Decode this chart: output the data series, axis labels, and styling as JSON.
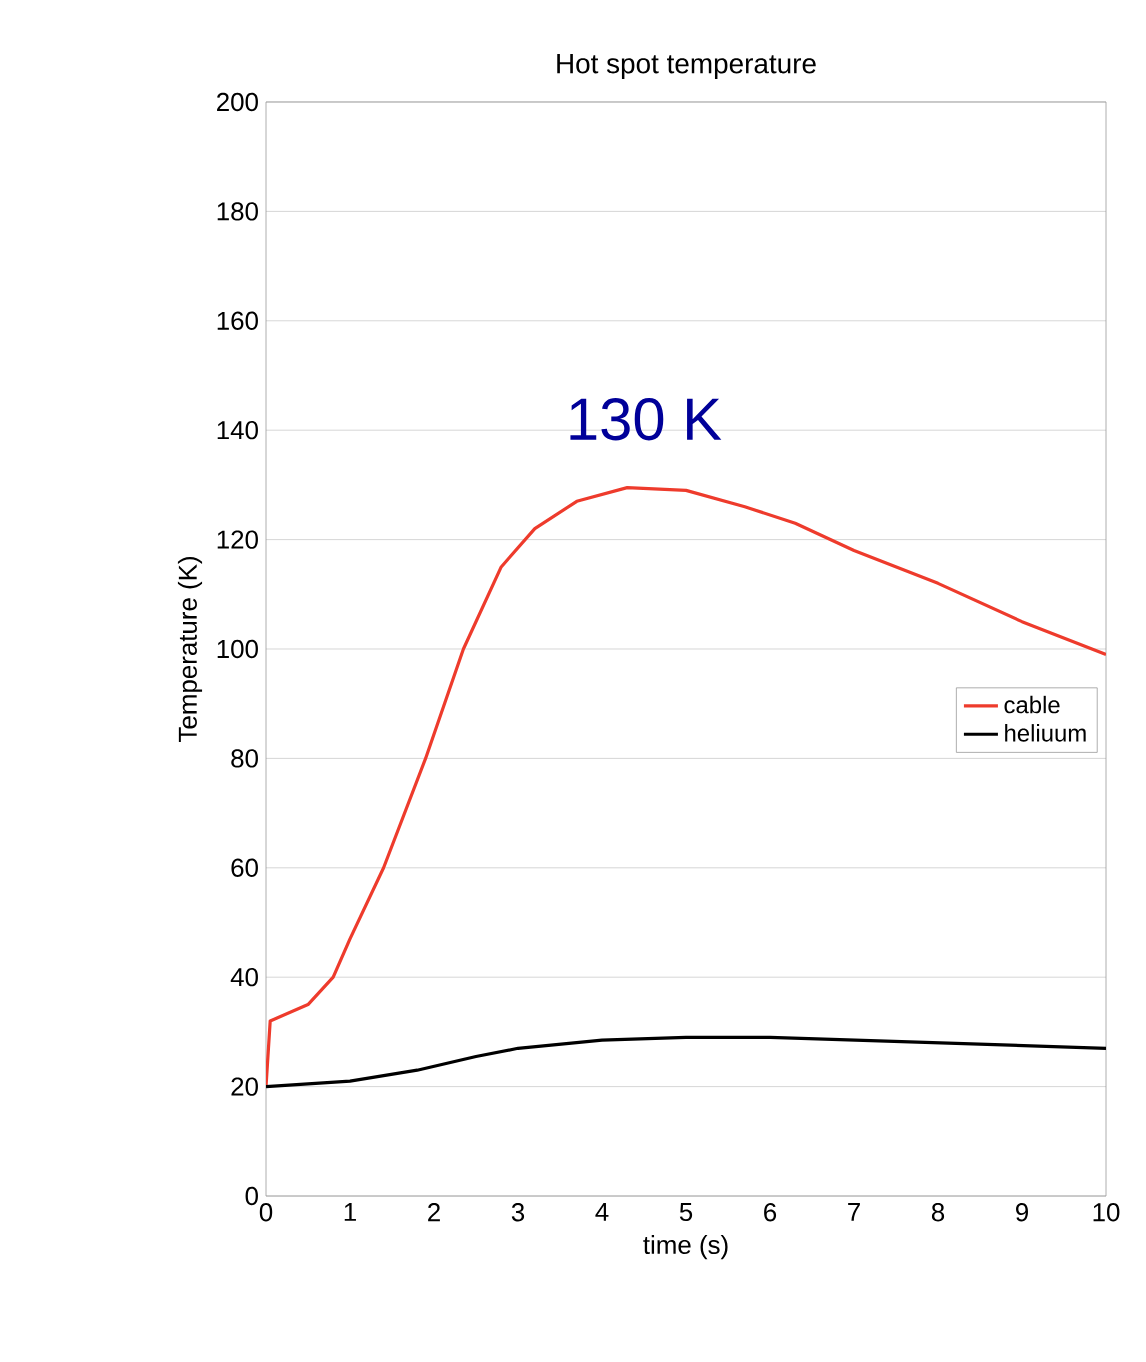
{
  "chart_data": {
    "type": "line",
    "title": "Hot spot temperature",
    "xlabel": "time (s)",
    "ylabel": "Temperature (K)",
    "xlim": [
      0,
      10
    ],
    "ylim": [
      0,
      200
    ],
    "xticks": [
      0,
      1,
      2,
      3,
      4,
      5,
      6,
      7,
      8,
      9,
      10
    ],
    "yticks": [
      0,
      20,
      40,
      60,
      80,
      100,
      120,
      140,
      160,
      180,
      200
    ],
    "grid": "y",
    "legend": "right",
    "marker": "none",
    "line_style": "solid",
    "annotations": [
      "130 K"
    ],
    "series": [
      {
        "name": "cable",
        "color": "#ee3b2c",
        "x": [
          0,
          0.05,
          0.5,
          0.8,
          1.0,
          1.4,
          1.9,
          2.35,
          2.8,
          3.2,
          3.7,
          4.3,
          5,
          5.7,
          6.3,
          7,
          8,
          9,
          10
        ],
        "values": [
          20,
          32,
          35,
          40,
          47,
          60,
          80,
          100,
          115,
          122,
          127,
          129.5,
          129,
          126,
          123,
          118,
          112,
          105,
          99
        ]
      },
      {
        "name": "heliuum",
        "color": "#000000",
        "x": [
          0,
          1,
          1.8,
          2.5,
          3,
          4,
          5,
          6,
          7,
          8,
          9,
          10
        ],
        "values": [
          20,
          21,
          23,
          25.5,
          27,
          28.5,
          29,
          29,
          28.5,
          28,
          27.5,
          27
        ]
      }
    ]
  }
}
